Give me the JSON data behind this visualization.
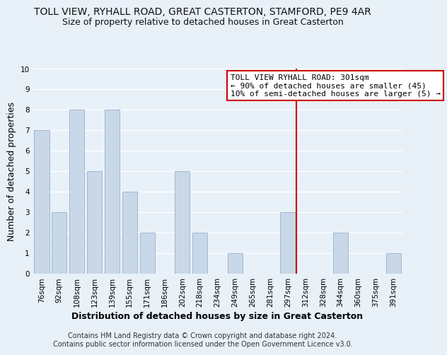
{
  "title": "TOLL VIEW, RYHALL ROAD, GREAT CASTERTON, STAMFORD, PE9 4AR",
  "subtitle": "Size of property relative to detached houses in Great Casterton",
  "xlabel": "Distribution of detached houses by size in Great Casterton",
  "ylabel": "Number of detached properties",
  "bar_labels": [
    "76sqm",
    "92sqm",
    "108sqm",
    "123sqm",
    "139sqm",
    "155sqm",
    "171sqm",
    "186sqm",
    "202sqm",
    "218sqm",
    "234sqm",
    "249sqm",
    "265sqm",
    "281sqm",
    "297sqm",
    "312sqm",
    "328sqm",
    "344sqm",
    "360sqm",
    "375sqm",
    "391sqm"
  ],
  "bar_values": [
    7,
    3,
    8,
    5,
    8,
    4,
    2,
    0,
    5,
    2,
    0,
    1,
    0,
    0,
    3,
    0,
    0,
    2,
    0,
    0,
    1
  ],
  "bar_color": "#c8d8e8",
  "bar_edgecolor": "#a0b8d0",
  "vline_x_index": 14.5,
  "vline_color": "#cc0000",
  "ylim": [
    0,
    10
  ],
  "yticks": [
    0,
    1,
    2,
    3,
    4,
    5,
    6,
    7,
    8,
    9,
    10
  ],
  "annotation_title": "TOLL VIEW RYHALL ROAD: 301sqm",
  "annotation_line1": "← 90% of detached houses are smaller (45)",
  "annotation_line2": "10% of semi-detached houses are larger (5) →",
  "annotation_box_color": "#ffffff",
  "annotation_box_edgecolor": "#cc0000",
  "footer_line1": "Contains HM Land Registry data © Crown copyright and database right 2024.",
  "footer_line2": "Contains public sector information licensed under the Open Government Licence v3.0.",
  "background_color": "#e8f0f8",
  "grid_color": "#ffffff",
  "title_fontsize": 10,
  "subtitle_fontsize": 9,
  "axis_label_fontsize": 9,
  "tick_fontsize": 7.5,
  "footer_fontsize": 7,
  "annotation_fontsize": 8
}
